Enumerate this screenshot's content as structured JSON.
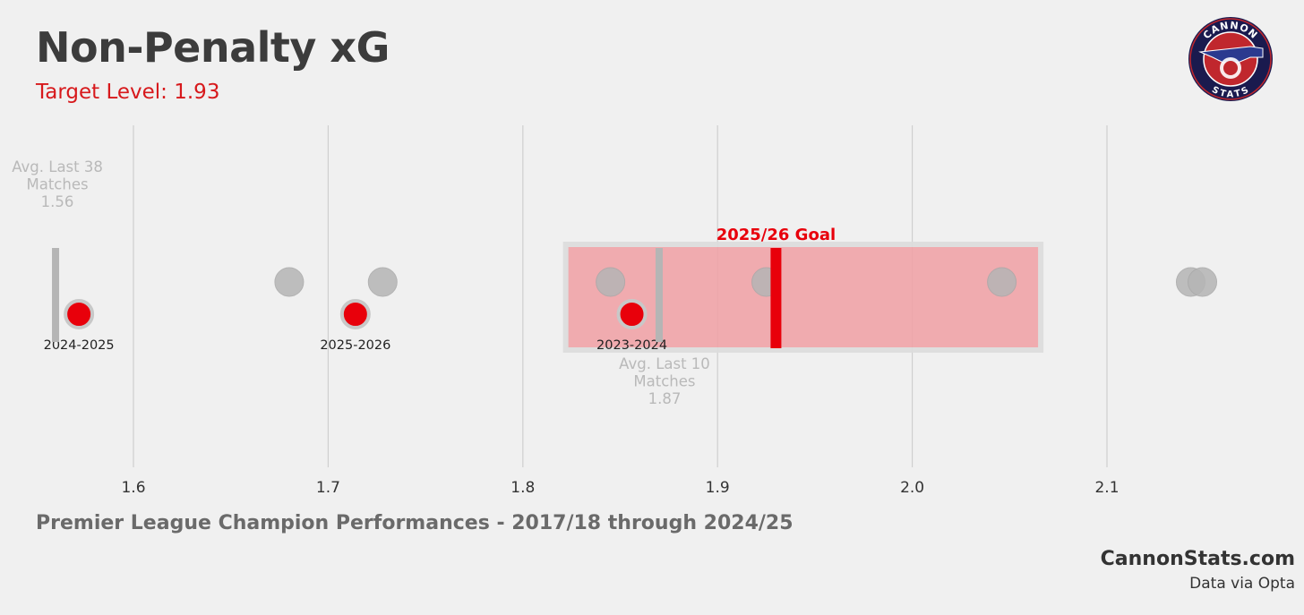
{
  "header": {
    "title": "Non-Penalty xG",
    "subtitle": "Target Level: 1.93"
  },
  "logo": {
    "icon": "cannon-stats-logo",
    "text_top": "CANNON",
    "text_bottom": "STATS",
    "colors": {
      "ring": "#1a1a4e",
      "inner": "#c0272d",
      "accent": "#2b3a8f"
    }
  },
  "footer": {
    "caption": "Premier League Champion Performances - 2017/18 through 2024/25",
    "site": "CannonStats.com",
    "source": "Data via Opta"
  },
  "chart_data": {
    "type": "scatter",
    "xlim": [
      1.5,
      2.2
    ],
    "x_ticks": [
      1.6,
      1.7,
      1.8,
      1.9,
      2.0,
      2.1
    ],
    "x_tick_labels": [
      "1.6",
      "1.7",
      "1.8",
      "1.9",
      "2.0",
      "2.1"
    ],
    "grid": "vertical",
    "champion_points": {
      "color": "#b5b5b5",
      "x": [
        1.68,
        1.728,
        1.845,
        1.925,
        2.046,
        2.143,
        2.149
      ]
    },
    "season_points": {
      "color": "#e8000b",
      "points": [
        {
          "label": "2024-2025",
          "x": 1.572
        },
        {
          "label": "2025-2026",
          "x": 1.714
        },
        {
          "label": "2023-2024",
          "x": 1.856
        }
      ]
    },
    "target_band": {
      "x_range": [
        1.822,
        2.066
      ],
      "color": "#f0a4a8"
    },
    "goal_line": {
      "x": 1.93,
      "label": "2025/26 Goal",
      "color": "#e8000b"
    },
    "avg_markers": [
      {
        "x": 1.56,
        "lines": [
          "Avg. Last 38",
          "Matches",
          "1.56"
        ],
        "position": "above"
      },
      {
        "x": 1.87,
        "lines": [
          "Avg. Last 10",
          "Matches",
          "1.87"
        ],
        "position": "below"
      }
    ]
  }
}
